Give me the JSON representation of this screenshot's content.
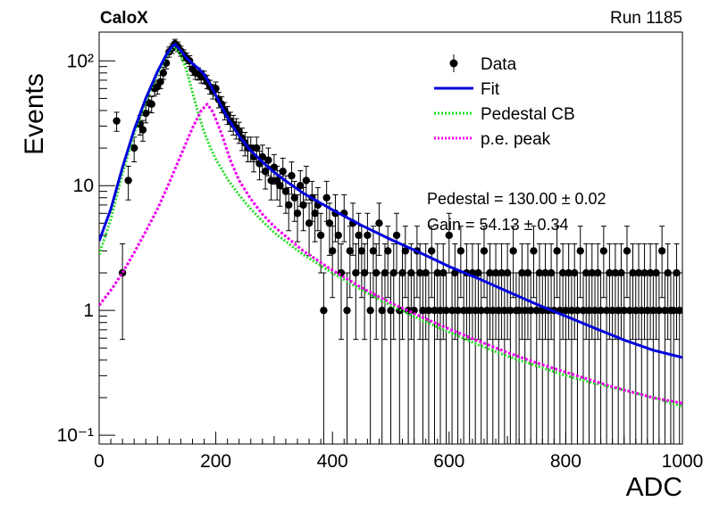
{
  "header": {
    "left_label": "CaloX",
    "right_label": "Run 1185"
  },
  "colors": {
    "data": "#000000",
    "fit": "#0000dd",
    "pedestal_cb": "#22dd22",
    "pe_peak": "#ee00ee"
  },
  "legend": {
    "position": "top-right",
    "entries": [
      {
        "label": "Data",
        "style": "marker-errorbar"
      },
      {
        "label": "Fit",
        "style": "solid"
      },
      {
        "label": "Pedestal CB",
        "style": "dotted"
      },
      {
        "label": "p.e. peak",
        "style": "dotted"
      }
    ]
  },
  "fit_results": {
    "line1": "Pedestal = 130.00 ± 0.02",
    "line2": "Gain = 54.13 ± 0.34"
  },
  "chart_data": {
    "type": "scatter",
    "xlabel": "ADC",
    "ylabel": "Events",
    "xlim": [
      0,
      1000
    ],
    "ylim": [
      0.085,
      170
    ],
    "yscale": "log",
    "grid": false,
    "x_ticks": [
      0,
      200,
      400,
      600,
      800,
      1000
    ],
    "x_tick_labels": [
      "0",
      "200",
      "400",
      "600",
      "800",
      "1000"
    ],
    "y_ticks": [
      0.1,
      1,
      10,
      100
    ],
    "y_tick_labels": [
      "10⁻¹",
      "1",
      "10",
      "10²"
    ],
    "series": [
      {
        "name": "Data",
        "kind": "points_with_errors",
        "points": [
          [
            30,
            33
          ],
          [
            40,
            2
          ],
          [
            50,
            11
          ],
          [
            60,
            20
          ],
          [
            70,
            31
          ],
          [
            75,
            28
          ],
          [
            80,
            38
          ],
          [
            85,
            46
          ],
          [
            90,
            45
          ],
          [
            95,
            60
          ],
          [
            100,
            62
          ],
          [
            105,
            68
          ],
          [
            110,
            80
          ],
          [
            115,
            96
          ],
          [
            120,
            118
          ],
          [
            125,
            126
          ],
          [
            130,
            137
          ],
          [
            135,
            130
          ],
          [
            140,
            120
          ],
          [
            145,
            112
          ],
          [
            150,
            105
          ],
          [
            155,
            100
          ],
          [
            160,
            86
          ],
          [
            165,
            80
          ],
          [
            170,
            79
          ],
          [
            175,
            75
          ],
          [
            180,
            74
          ],
          [
            185,
            68
          ],
          [
            190,
            62
          ],
          [
            195,
            57
          ],
          [
            200,
            60
          ],
          [
            205,
            49
          ],
          [
            210,
            45
          ],
          [
            215,
            40
          ],
          [
            220,
            37
          ],
          [
            225,
            33
          ],
          [
            230,
            31
          ],
          [
            235,
            29
          ],
          [
            240,
            27
          ],
          [
            245,
            24
          ],
          [
            250,
            22
          ],
          [
            255,
            20
          ],
          [
            260,
            20
          ],
          [
            265,
            17
          ],
          [
            270,
            20
          ],
          [
            275,
            15
          ],
          [
            280,
            17
          ],
          [
            285,
            13
          ],
          [
            290,
            16
          ],
          [
            295,
            11
          ],
          [
            300,
            14
          ],
          [
            305,
            11
          ],
          [
            310,
            10
          ],
          [
            315,
            13
          ],
          [
            320,
            9
          ],
          [
            325,
            7
          ],
          [
            330,
            12
          ],
          [
            335,
            8
          ],
          [
            340,
            6
          ],
          [
            345,
            10
          ],
          [
            350,
            7
          ],
          [
            355,
            11
          ],
          [
            360,
            5
          ],
          [
            365,
            8
          ],
          [
            370,
            6
          ],
          [
            375,
            7
          ],
          [
            380,
            4
          ],
          [
            385,
            1
          ],
          [
            390,
            8
          ],
          [
            395,
            5
          ],
          [
            400,
            3
          ],
          [
            405,
            6
          ],
          [
            410,
            4
          ],
          [
            415,
            2
          ],
          [
            420,
            6
          ],
          [
            425,
            1
          ],
          [
            430,
            3
          ],
          [
            435,
            5
          ],
          [
            440,
            2
          ],
          [
            445,
            4
          ],
          [
            450,
            3
          ],
          [
            455,
            2
          ],
          [
            460,
            4
          ],
          [
            465,
            1
          ],
          [
            470,
            3
          ],
          [
            475,
            2
          ],
          [
            480,
            5
          ],
          [
            485,
            1
          ],
          [
            490,
            2
          ],
          [
            495,
            3
          ],
          [
            500,
            1
          ],
          [
            505,
            2
          ],
          [
            510,
            4
          ],
          [
            515,
            1
          ],
          [
            520,
            2
          ],
          [
            525,
            3
          ],
          [
            530,
            1
          ],
          [
            535,
            2
          ],
          [
            540,
            1
          ],
          [
            545,
            3
          ],
          [
            550,
            2
          ],
          [
            555,
            1
          ],
          [
            560,
            2
          ],
          [
            565,
            1
          ],
          [
            570,
            3
          ],
          [
            575,
            1
          ],
          [
            580,
            2
          ],
          [
            585,
            1
          ],
          [
            590,
            2
          ],
          [
            595,
            1
          ],
          [
            600,
            4
          ],
          [
            605,
            1
          ],
          [
            610,
            2
          ],
          [
            615,
            1
          ],
          [
            620,
            3
          ],
          [
            625,
            1
          ],
          [
            630,
            2
          ],
          [
            635,
            1
          ],
          [
            640,
            2
          ],
          [
            645,
            1
          ],
          [
            650,
            2
          ],
          [
            655,
            1
          ],
          [
            660,
            3
          ],
          [
            665,
            1
          ],
          [
            670,
            2
          ],
          [
            675,
            1
          ],
          [
            680,
            2
          ],
          [
            685,
            1
          ],
          [
            690,
            2
          ],
          [
            695,
            1
          ],
          [
            700,
            2
          ],
          [
            705,
            1
          ],
          [
            710,
            3
          ],
          [
            715,
            1
          ],
          [
            720,
            1
          ],
          [
            725,
            2
          ],
          [
            730,
            1
          ],
          [
            735,
            2
          ],
          [
            740,
            1
          ],
          [
            745,
            3
          ],
          [
            750,
            1
          ],
          [
            755,
            2
          ],
          [
            760,
            1
          ],
          [
            765,
            2
          ],
          [
            770,
            1
          ],
          [
            775,
            2
          ],
          [
            780,
            1
          ],
          [
            785,
            3
          ],
          [
            790,
            1
          ],
          [
            795,
            2
          ],
          [
            800,
            1
          ],
          [
            805,
            2
          ],
          [
            810,
            1
          ],
          [
            815,
            2
          ],
          [
            820,
            1
          ],
          [
            825,
            3
          ],
          [
            830,
            1
          ],
          [
            835,
            2
          ],
          [
            840,
            1
          ],
          [
            845,
            2
          ],
          [
            850,
            1
          ],
          [
            855,
            2
          ],
          [
            860,
            1
          ],
          [
            865,
            3
          ],
          [
            870,
            1
          ],
          [
            875,
            2
          ],
          [
            880,
            1
          ],
          [
            885,
            2
          ],
          [
            890,
            1
          ],
          [
            895,
            2
          ],
          [
            900,
            1
          ],
          [
            905,
            3
          ],
          [
            910,
            1
          ],
          [
            915,
            2
          ],
          [
            920,
            1
          ],
          [
            925,
            2
          ],
          [
            930,
            1
          ],
          [
            935,
            2
          ],
          [
            940,
            1
          ],
          [
            945,
            2
          ],
          [
            950,
            1
          ],
          [
            955,
            2
          ],
          [
            960,
            1
          ],
          [
            965,
            3
          ],
          [
            970,
            1
          ],
          [
            975,
            2
          ],
          [
            980,
            1
          ],
          [
            985,
            1
          ],
          [
            990,
            2
          ],
          [
            995,
            1
          ]
        ]
      },
      {
        "name": "Fit",
        "kind": "line",
        "points": [
          [
            0,
            3.6
          ],
          [
            20,
            6.5
          ],
          [
            40,
            14
          ],
          [
            60,
            28
          ],
          [
            80,
            50
          ],
          [
            100,
            82
          ],
          [
            115,
            112
          ],
          [
            125,
            130
          ],
          [
            130,
            136
          ],
          [
            140,
            121
          ],
          [
            150,
            105
          ],
          [
            160,
            95
          ],
          [
            170,
            87
          ],
          [
            180,
            78
          ],
          [
            190,
            65
          ],
          [
            200,
            53
          ],
          [
            210,
            43
          ],
          [
            220,
            35
          ],
          [
            240,
            25
          ],
          [
            260,
            19
          ],
          [
            280,
            15.5
          ],
          [
            300,
            12.8
          ],
          [
            320,
            10.9
          ],
          [
            350,
            8.7
          ],
          [
            400,
            6.4
          ],
          [
            450,
            4.8
          ],
          [
            500,
            3.7
          ],
          [
            550,
            2.9
          ],
          [
            600,
            2.25
          ],
          [
            650,
            1.8
          ],
          [
            700,
            1.42
          ],
          [
            750,
            1.12
          ],
          [
            800,
            0.9
          ],
          [
            850,
            0.72
          ],
          [
            900,
            0.58
          ],
          [
            950,
            0.48
          ],
          [
            1000,
            0.42
          ]
        ]
      },
      {
        "name": "Pedestal CB",
        "kind": "line",
        "points": [
          [
            0,
            2.8
          ],
          [
            20,
            5.4
          ],
          [
            40,
            12.5
          ],
          [
            60,
            26
          ],
          [
            80,
            47
          ],
          [
            100,
            79
          ],
          [
            115,
            108
          ],
          [
            125,
            126
          ],
          [
            130,
            130
          ],
          [
            140,
            112
          ],
          [
            150,
            84
          ],
          [
            160,
            56
          ],
          [
            170,
            38
          ],
          [
            180,
            27
          ],
          [
            190,
            20.5
          ],
          [
            200,
            16.3
          ],
          [
            220,
            11.3
          ],
          [
            240,
            8.4
          ],
          [
            260,
            6.5
          ],
          [
            280,
            5.2
          ],
          [
            300,
            4.2
          ],
          [
            350,
            2.8
          ],
          [
            400,
            2.0
          ],
          [
            450,
            1.46
          ],
          [
            500,
            1.1
          ],
          [
            550,
            0.85
          ],
          [
            600,
            0.67
          ],
          [
            650,
            0.53
          ],
          [
            700,
            0.43
          ],
          [
            750,
            0.36
          ],
          [
            800,
            0.3
          ],
          [
            850,
            0.26
          ],
          [
            900,
            0.23
          ],
          [
            950,
            0.2
          ],
          [
            1000,
            0.17
          ]
        ]
      },
      {
        "name": "p.e. peak",
        "kind": "line",
        "points": [
          [
            0,
            1.1
          ],
          [
            20,
            1.45
          ],
          [
            40,
            2.0
          ],
          [
            60,
            2.9
          ],
          [
            80,
            4.3
          ],
          [
            100,
            6.5
          ],
          [
            120,
            10.5
          ],
          [
            140,
            17.5
          ],
          [
            160,
            29
          ],
          [
            175,
            40
          ],
          [
            185,
            45
          ],
          [
            195,
            39
          ],
          [
            210,
            26
          ],
          [
            225,
            16
          ],
          [
            240,
            11
          ],
          [
            260,
            7.8
          ],
          [
            280,
            5.9
          ],
          [
            300,
            4.7
          ],
          [
            350,
            3.0
          ],
          [
            400,
            2.1
          ],
          [
            450,
            1.52
          ],
          [
            500,
            1.15
          ],
          [
            550,
            0.9
          ],
          [
            600,
            0.71
          ],
          [
            650,
            0.57
          ],
          [
            700,
            0.46
          ],
          [
            750,
            0.38
          ],
          [
            800,
            0.32
          ],
          [
            850,
            0.27
          ],
          [
            900,
            0.23
          ],
          [
            950,
            0.2
          ],
          [
            1000,
            0.18
          ]
        ]
      }
    ]
  }
}
